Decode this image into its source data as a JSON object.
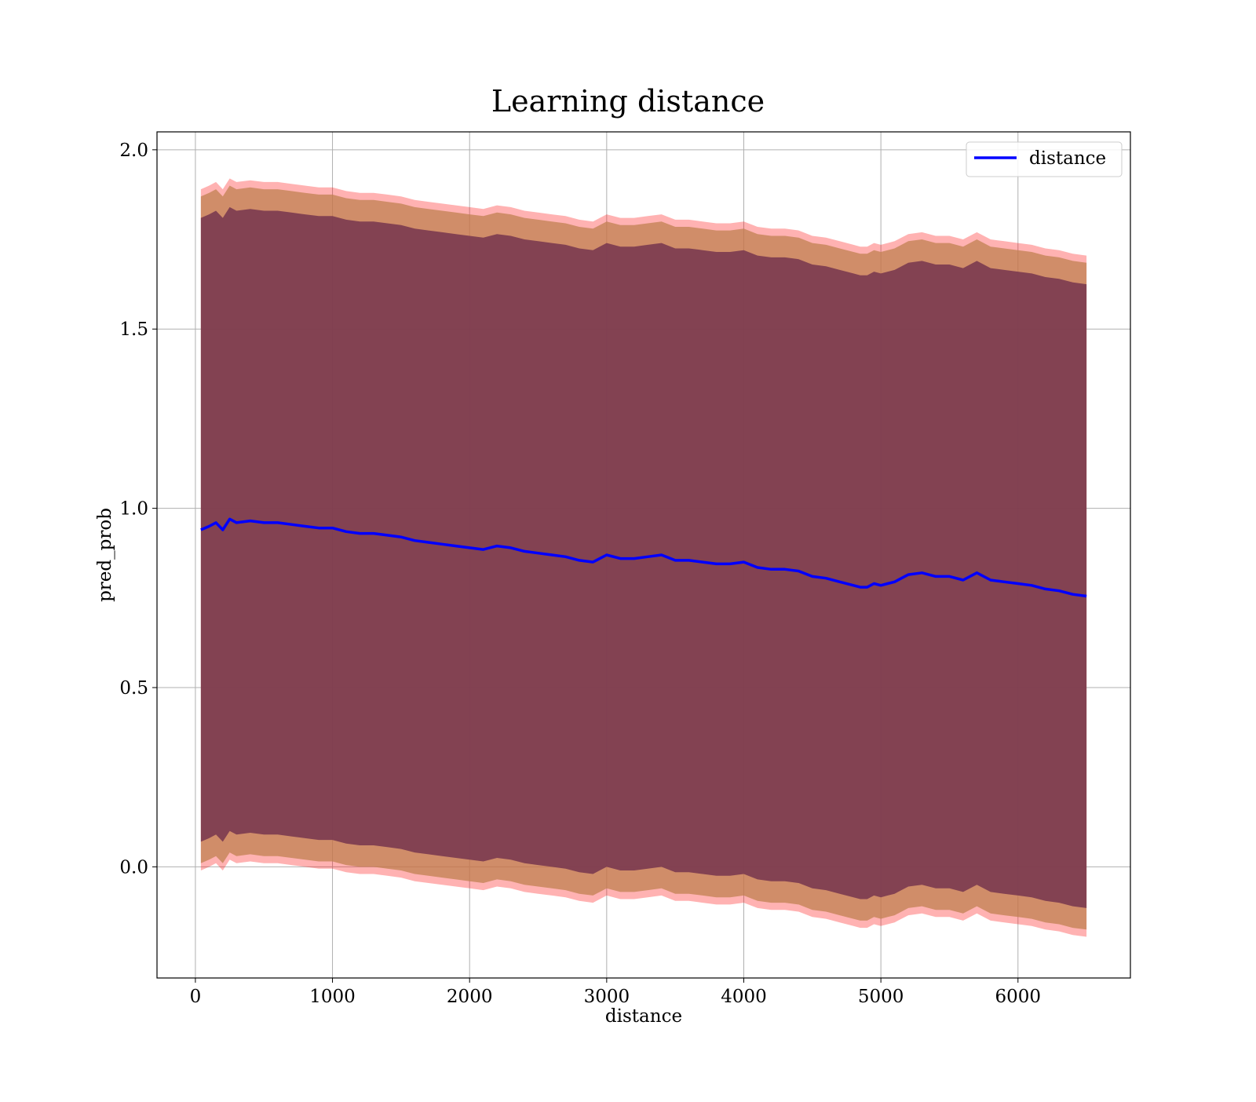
{
  "chart_data": {
    "type": "line",
    "title": "Learning distance",
    "xlabel": "distance",
    "ylabel": "pred_prob",
    "xlim": [
      -280,
      6820
    ],
    "ylim": [
      -0.31,
      2.05
    ],
    "xticks": [
      0,
      1000,
      2000,
      3000,
      4000,
      5000,
      6000
    ],
    "yticks": [
      0.0,
      0.5,
      1.0,
      1.5,
      2.0
    ],
    "xtick_labels": [
      "0",
      "1000",
      "2000",
      "3000",
      "4000",
      "5000",
      "6000"
    ],
    "ytick_labels": [
      "0.0",
      "0.5",
      "1.0",
      "1.5",
      "2.0"
    ],
    "grid": true,
    "legend": {
      "position": "top-right",
      "entries": [
        "distance"
      ]
    },
    "colors": {
      "line": "#0000ff",
      "band_outer": "#ff0000",
      "band_middle": "#c08050",
      "band_inner": "#7a3a50",
      "grid": "#b0b0b0"
    },
    "series": [
      {
        "name": "distance",
        "x": [
          40,
          100,
          150,
          200,
          250,
          300,
          400,
          500,
          600,
          700,
          800,
          900,
          1000,
          1100,
          1200,
          1300,
          1400,
          1500,
          1600,
          1700,
          1800,
          1900,
          2000,
          2100,
          2200,
          2300,
          2400,
          2500,
          2600,
          2700,
          2800,
          2900,
          3000,
          3100,
          3200,
          3300,
          3400,
          3500,
          3600,
          3700,
          3800,
          3900,
          4000,
          4100,
          4200,
          4300,
          4400,
          4500,
          4600,
          4700,
          4800,
          4850,
          4900,
          4950,
          5000,
          5050,
          5100,
          5200,
          5300,
          5400,
          5500,
          5600,
          5700,
          5800,
          5900,
          6000,
          6100,
          6200,
          6300,
          6400,
          6500
        ],
        "y": [
          0.94,
          0.95,
          0.96,
          0.94,
          0.97,
          0.96,
          0.965,
          0.96,
          0.96,
          0.955,
          0.95,
          0.945,
          0.945,
          0.935,
          0.93,
          0.93,
          0.925,
          0.92,
          0.91,
          0.905,
          0.9,
          0.895,
          0.89,
          0.885,
          0.895,
          0.89,
          0.88,
          0.875,
          0.87,
          0.865,
          0.855,
          0.85,
          0.87,
          0.86,
          0.86,
          0.865,
          0.87,
          0.855,
          0.855,
          0.85,
          0.845,
          0.845,
          0.85,
          0.835,
          0.83,
          0.83,
          0.825,
          0.81,
          0.805,
          0.795,
          0.785,
          0.78,
          0.78,
          0.79,
          0.785,
          0.79,
          0.795,
          0.815,
          0.82,
          0.81,
          0.81,
          0.8,
          0.82,
          0.8,
          0.795,
          0.79,
          0.785,
          0.775,
          0.77,
          0.76,
          0.755
        ]
      }
    ],
    "bands": [
      {
        "name": "outer",
        "half_width": 0.95
      },
      {
        "name": "middle",
        "half_width": 0.93
      },
      {
        "name": "inner",
        "half_width": 0.87
      }
    ]
  }
}
